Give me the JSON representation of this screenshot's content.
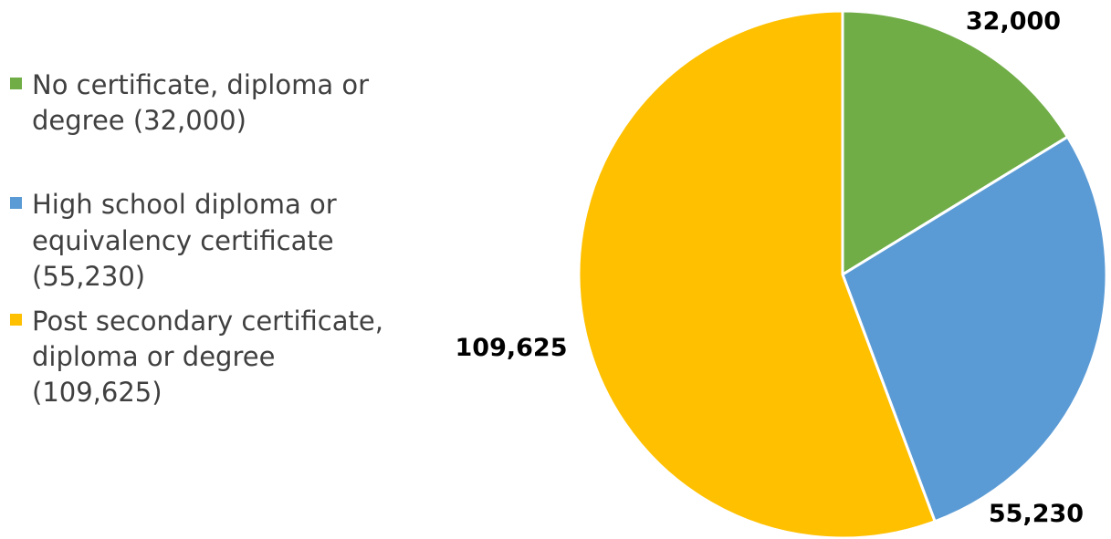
{
  "chart_data": {
    "type": "pie",
    "title": "",
    "legend_position": "left",
    "slices": [
      {
        "label": "No certificate, diploma or degree (32,000)",
        "legend_lines": [
          "No certificate, diploma or",
          "degree (32,000)"
        ],
        "value": 32000,
        "display_value": "32,000",
        "color": "#70AD47"
      },
      {
        "label": "High school diploma or equivalency certificate (55,230)",
        "legend_lines": [
          "High school diploma or",
          "equivalency certificate",
          "(55,230)"
        ],
        "value": 55230,
        "display_value": "55,230",
        "color": "#5B9BD5"
      },
      {
        "label": "Post secondary certificate, diploma or degree (109,625)",
        "legend_lines": [
          "Post secondary certificate,",
          "diploma or degree",
          "(109,625)"
        ],
        "value": 109625,
        "display_value": "109,625",
        "color": "#FFC000"
      }
    ]
  }
}
